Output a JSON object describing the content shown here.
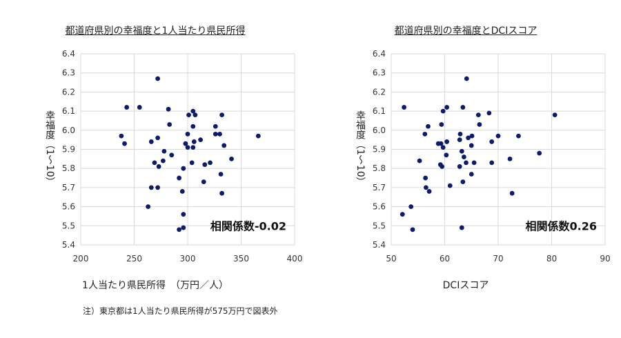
{
  "note": "注）東京都は1人当たり県民所得が575万円で図表外",
  "chart_data": [
    {
      "type": "scatter",
      "title": "都道府県別の幸福度と1人当たり県民所得",
      "xlabel": "1人当たり県民所得　（万円／人）",
      "ylabel": "幸福度（1〜10）",
      "xlim": [
        200,
        400
      ],
      "ylim": [
        5.4,
        6.4
      ],
      "xticks": [
        "200",
        "250",
        "300",
        "350",
        "400"
      ],
      "yticks": [
        "5.4",
        "5.5",
        "5.6",
        "5.7",
        "5.8",
        "5.9",
        "6.0",
        "6.1",
        "6.2",
        "6.3",
        "6.4"
      ],
      "grid": true,
      "annotation": "相関係数-0.02",
      "color": "#0d1b6e",
      "points": [
        [
          243,
          6.12
        ],
        [
          255,
          6.12
        ],
        [
          272,
          6.27
        ],
        [
          282,
          6.11
        ],
        [
          301,
          6.08
        ],
        [
          305,
          6.1
        ],
        [
          307,
          6.08
        ],
        [
          332,
          6.08
        ],
        [
          238,
          5.97
        ],
        [
          241,
          5.93
        ],
        [
          266,
          5.94
        ],
        [
          272,
          5.96
        ],
        [
          283,
          6.03
        ],
        [
          300,
          5.98
        ],
        [
          305,
          6.02
        ],
        [
          312,
          5.95
        ],
        [
          326,
          6.02
        ],
        [
          326,
          5.98
        ],
        [
          330,
          5.98
        ],
        [
          334,
          5.92
        ],
        [
          366,
          5.97
        ],
        [
          278,
          5.89
        ],
        [
          285,
          5.87
        ],
        [
          298,
          5.93
        ],
        [
          300,
          5.91
        ],
        [
          306,
          5.94
        ],
        [
          305,
          5.91
        ],
        [
          269,
          5.83
        ],
        [
          273,
          5.81
        ],
        [
          277,
          5.84
        ],
        [
          296,
          5.8
        ],
        [
          304,
          5.83
        ],
        [
          316,
          5.82
        ],
        [
          321,
          5.83
        ],
        [
          341,
          5.85
        ],
        [
          292,
          5.75
        ],
        [
          331,
          5.77
        ],
        [
          266,
          5.7
        ],
        [
          272,
          5.7
        ],
        [
          295,
          5.68
        ],
        [
          315,
          5.73
        ],
        [
          332,
          5.67
        ],
        [
          263,
          5.6
        ],
        [
          296,
          5.56
        ],
        [
          292,
          5.48
        ],
        [
          296,
          5.49
        ]
      ]
    },
    {
      "type": "scatter",
      "title": "都道府県別の幸福度とDCIスコア",
      "xlabel": "DCIスコア",
      "ylabel": "幸福度（1〜10）",
      "xlim": [
        50,
        90
      ],
      "ylim": [
        5.4,
        6.4
      ],
      "xticks": [
        "50",
        "60",
        "70",
        "80",
        "90"
      ],
      "yticks": [
        "5.4",
        "5.5",
        "5.6",
        "5.7",
        "5.8",
        "5.9",
        "6.0",
        "6.1",
        "6.2",
        "6.3",
        "6.4"
      ],
      "grid": true,
      "annotation": "相関係数0.26",
      "color": "#0d1b6e",
      "points": [
        [
          52.4,
          6.12
        ],
        [
          59.7,
          6.1
        ],
        [
          60.4,
          6.12
        ],
        [
          63.4,
          6.12
        ],
        [
          66.3,
          6.08
        ],
        [
          68.3,
          6.09
        ],
        [
          80.6,
          6.08
        ],
        [
          64.1,
          6.27
        ],
        [
          56.9,
          6.02
        ],
        [
          59.4,
          6.03
        ],
        [
          56.3,
          5.98
        ],
        [
          62.9,
          5.98
        ],
        [
          66.5,
          6.03
        ],
        [
          58.8,
          5.93
        ],
        [
          59.3,
          5.93
        ],
        [
          59.7,
          5.91
        ],
        [
          60.4,
          5.94
        ],
        [
          62.8,
          5.95
        ],
        [
          63.2,
          5.89
        ],
        [
          64.4,
          5.96
        ],
        [
          65.1,
          5.97
        ],
        [
          65.0,
          5.92
        ],
        [
          68.8,
          5.94
        ],
        [
          70.0,
          5.97
        ],
        [
          73.8,
          5.97
        ],
        [
          59.5,
          5.81
        ],
        [
          59.2,
          5.82
        ],
        [
          60.3,
          5.87
        ],
        [
          62.8,
          5.81
        ],
        [
          63.6,
          5.86
        ],
        [
          64.0,
          5.83
        ],
        [
          65.5,
          5.83
        ],
        [
          68.8,
          5.83
        ],
        [
          72.2,
          5.85
        ],
        [
          77.7,
          5.88
        ],
        [
          55.3,
          5.84
        ],
        [
          56.4,
          5.75
        ],
        [
          56.5,
          5.7
        ],
        [
          57.1,
          5.68
        ],
        [
          61.0,
          5.71
        ],
        [
          65.0,
          5.77
        ],
        [
          63.4,
          5.73
        ],
        [
          72.6,
          5.67
        ],
        [
          52.1,
          5.56
        ],
        [
          53.7,
          5.6
        ],
        [
          54.0,
          5.48
        ],
        [
          63.2,
          5.49
        ]
      ]
    }
  ]
}
